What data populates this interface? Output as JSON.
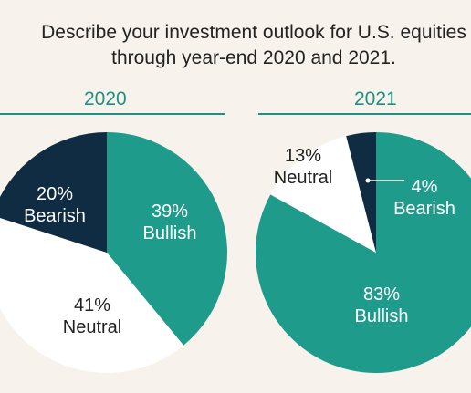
{
  "title_line1": "Describe your investment outlook for U.S. equities",
  "title_line2": "through year-end 2020 and 2021.",
  "colors": {
    "bullish": "#1f9b8c",
    "neutral": "#ffffff",
    "bearish": "#0f2c43",
    "accent": "#1f8f82",
    "background": "#f7f3ec"
  },
  "chart_data": [
    {
      "type": "pie",
      "title": "2020",
      "slices": [
        {
          "label": "Bullish",
          "value": 39,
          "value_text": "39%"
        },
        {
          "label": "Neutral",
          "value": 41,
          "value_text": "41%"
        },
        {
          "label": "Bearish",
          "value": 20,
          "value_text": "20%"
        }
      ]
    },
    {
      "type": "pie",
      "title": "2021",
      "slices": [
        {
          "label": "Bullish",
          "value": 83,
          "value_text": "83%"
        },
        {
          "label": "Neutral",
          "value": 13,
          "value_text": "13%"
        },
        {
          "label": "Bearish",
          "value": 4,
          "value_text": "4%"
        }
      ]
    }
  ]
}
